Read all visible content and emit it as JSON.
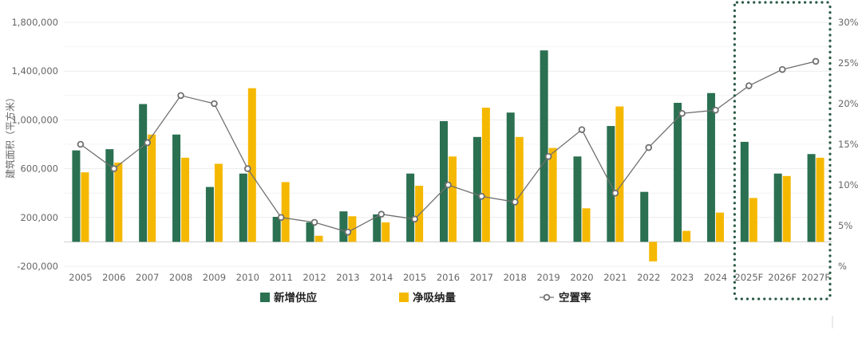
{
  "chart_data": {
    "type": "bar",
    "categories": [
      "2005",
      "2006",
      "2007",
      "2008",
      "2009",
      "2010",
      "2011",
      "2012",
      "2013",
      "2014",
      "2015",
      "2016",
      "2017",
      "2018",
      "2019",
      "2020",
      "2021",
      "2022",
      "2023",
      "2024",
      "2025F",
      "2026F",
      "2027F"
    ],
    "series": [
      {
        "name": "新增供应",
        "type": "bar",
        "axis": "left",
        "color": "#2a7051",
        "values": [
          750000,
          760000,
          1130000,
          880000,
          450000,
          560000,
          205000,
          160000,
          250000,
          225000,
          560000,
          990000,
          860000,
          1060000,
          1570000,
          700000,
          950000,
          410000,
          1140000,
          1220000,
          820000,
          560000,
          720000
        ]
      },
      {
        "name": "净吸纳量",
        "type": "bar",
        "axis": "left",
        "color": "#f5b800",
        "values": [
          570000,
          650000,
          880000,
          690000,
          640000,
          1260000,
          490000,
          50000,
          210000,
          160000,
          460000,
          700000,
          1100000,
          860000,
          770000,
          275000,
          1110000,
          -160000,
          90000,
          240000,
          360000,
          540000,
          690000
        ]
      },
      {
        "name": "空置率",
        "type": "line",
        "axis": "right",
        "color": "#707070",
        "values": [
          15.0,
          12.0,
          15.2,
          21.0,
          20.0,
          12.0,
          6.0,
          5.4,
          4.2,
          6.4,
          5.8,
          10.0,
          8.6,
          7.9,
          13.5,
          16.8,
          9.0,
          14.6,
          18.8,
          19.2,
          22.2,
          24.2,
          25.2
        ]
      }
    ],
    "ylabel": "建筑面积（平方米）",
    "ylim": [
      -200000,
      1800000
    ],
    "yticks": [
      -200000,
      200000,
      600000,
      1000000,
      1400000,
      1800000
    ],
    "ytick_labels": [
      "-200,000",
      "200,000",
      "600,000",
      "1,000,000",
      "1,400,000",
      "1,800,000"
    ],
    "y2lim": [
      0,
      30
    ],
    "y2ticks": [
      0,
      5,
      10,
      15,
      20,
      25,
      30
    ],
    "y2tick_labels": [
      "%",
      "5%",
      "10%",
      "15%",
      "20%",
      "25%",
      "30%"
    ],
    "grid": true,
    "legend_position": "bottom",
    "forecast_box_categories": [
      "2025F",
      "2026F",
      "2027F"
    ],
    "forecast_box_color": "#2a5a45"
  }
}
